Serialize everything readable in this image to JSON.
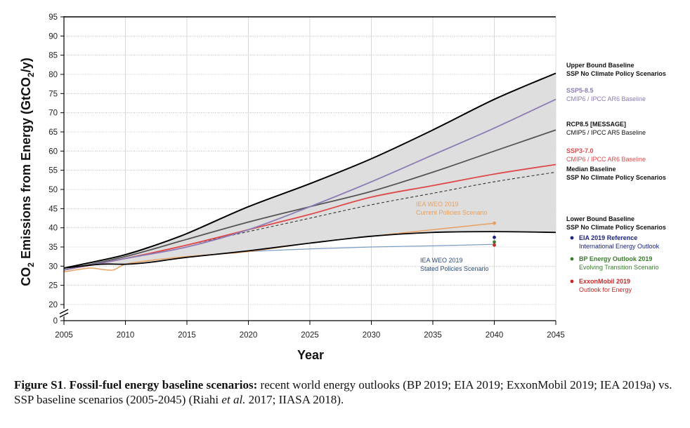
{
  "chart_data": {
    "type": "line",
    "xlabel": "Year",
    "ylabel_main": "CO",
    "ylabel_sub": "2",
    "ylabel_rest": " Emissions from Energy (GtCO",
    "ylabel_unit_sub": "2",
    "ylabel_end": "/y)",
    "xlim": [
      2005,
      2045
    ],
    "ylim": [
      20,
      95
    ],
    "x_ticks": [
      2005,
      2010,
      2015,
      2020,
      2025,
      2030,
      2035,
      2040,
      2045
    ],
    "y_ticks": [
      0,
      20,
      25,
      30,
      35,
      40,
      45,
      50,
      55,
      60,
      65,
      70,
      75,
      80,
      85,
      90,
      95
    ],
    "grid": true,
    "axis_break": true,
    "colors": {
      "upper": "#000000",
      "lower": "#000000",
      "ssp585": "#8c7bb5",
      "rcp85": "#555555",
      "ssp370": "#e04848",
      "median": "#333333",
      "iea_current": "#e8a060",
      "iea_stated": "#7a9cc4",
      "band": "#dcdcdc",
      "eia": "#1a237e",
      "bp": "#3a7d2c",
      "exxon": "#c62828"
    },
    "series": [
      {
        "key": "upper",
        "x": [
          2005,
          2008,
          2010,
          2012,
          2015,
          2020,
          2025,
          2030,
          2035,
          2040,
          2045
        ],
        "values": [
          29.5,
          31.5,
          33,
          35,
          38.5,
          45.5,
          51.5,
          58,
          65.5,
          73.5,
          80.3
        ]
      },
      {
        "key": "lower",
        "x": [
          2005,
          2008,
          2010,
          2012,
          2015,
          2020,
          2025,
          2030,
          2035,
          2040,
          2045
        ],
        "values": [
          29.5,
          30.5,
          30.5,
          31,
          32.3,
          34,
          36,
          37.8,
          38.8,
          39,
          38.8
        ]
      },
      {
        "key": "ssp585",
        "x": [
          2005,
          2010,
          2015,
          2020,
          2025,
          2030,
          2035,
          2040,
          2045
        ],
        "values": [
          29,
          32,
          35,
          39.5,
          45.5,
          52,
          59,
          66,
          73.5
        ]
      },
      {
        "key": "rcp85",
        "x": [
          2005,
          2010,
          2015,
          2020,
          2025,
          2030,
          2035,
          2040,
          2045
        ],
        "values": [
          29,
          32.5,
          37,
          41.5,
          45.5,
          49.5,
          54.5,
          60,
          65.5
        ]
      },
      {
        "key": "ssp370",
        "x": [
          2005,
          2010,
          2015,
          2020,
          2025,
          2030,
          2035,
          2040,
          2045
        ],
        "values": [
          29,
          32,
          35.5,
          39.5,
          43.5,
          48,
          51,
          54,
          56.5
        ]
      },
      {
        "key": "median",
        "x": [
          2005,
          2010,
          2015,
          2020,
          2025,
          2030,
          2035,
          2040,
          2045
        ],
        "values": [
          29,
          32,
          35.5,
          39,
          42.5,
          46,
          49,
          52,
          54.5
        ]
      },
      {
        "key": "iea_current",
        "x": [
          2005,
          2007,
          2008,
          2009,
          2010,
          2012,
          2015,
          2017,
          2020,
          2025,
          2030,
          2035,
          2040
        ],
        "values": [
          28.5,
          29.5,
          29.2,
          29,
          30.5,
          31.5,
          32.5,
          33,
          33.8,
          36,
          37.8,
          39.5,
          41.2
        ]
      },
      {
        "key": "iea_stated",
        "x": [
          2017,
          2020,
          2025,
          2030,
          2035,
          2040
        ],
        "values": [
          33,
          33.8,
          34.5,
          35,
          35.3,
          35.7
        ]
      }
    ],
    "points": [
      {
        "key": "eia",
        "x": 2040,
        "y": 37.5
      },
      {
        "key": "bp",
        "x": 2040,
        "y": 36.3
      },
      {
        "key": "exxon",
        "x": 2040,
        "y": 35.5
      }
    ],
    "annotations": {
      "iea_current_title": "IEA WEO 2019",
      "iea_current_sub": "Current Policies Scenario",
      "iea_stated_title": "IEA WEO 2019",
      "iea_stated_sub": "Stated Policies Scenario"
    },
    "legend": [
      {
        "title": "Upper Bound Baseline",
        "sub": "SSP No Climate Policy Scenarios",
        "color": "#111111",
        "subcolor": "#111111",
        "subbold": true
      },
      {
        "title": "SSP5-8.5",
        "sub": "CMIP6 / IPCC AR6 Baseline",
        "color": "#8c7bb5",
        "subcolor": "#8c7bb5",
        "subbold": false
      },
      {
        "title": "RCP8.5 [MESSAGE]",
        "sub": "CMIP5 / IPCC AR5 Baseline",
        "color": "#111111",
        "subcolor": "#111111",
        "subbold": false
      },
      {
        "title": "SSP3-7.0",
        "sub": "CMIP6 / IPCC AR6 Baseline",
        "color": "#e04848",
        "subcolor": "#e04848",
        "subbold": false
      },
      {
        "title": "Median Baseline",
        "sub": "SSP No Climate Policy Scenarios",
        "color": "#111111",
        "subcolor": "#111111",
        "subbold": true
      },
      {
        "title": "Lower Bound Baseline",
        "sub": "SSP No Climate Policy Scenarios",
        "color": "#111111",
        "subcolor": "#111111",
        "subbold": true
      },
      {
        "title": "EIA 2019 Reference",
        "sub": "International Energy Outlook",
        "color": "#1a237e",
        "subcolor": "#1a237e",
        "subbold": false,
        "dot": "#1a237e"
      },
      {
        "title": "BP Energy Outlook 2019",
        "sub": "Evolving Transition Scenario",
        "color": "#3a7d2c",
        "subcolor": "#3a7d2c",
        "subbold": false,
        "dot": "#3a7d2c"
      },
      {
        "title": "ExxonMobil 2019",
        "sub": "Outlook for Energy",
        "color": "#c62828",
        "subcolor": "#c62828",
        "subbold": false,
        "dot": "#c62828"
      }
    ]
  },
  "caption": {
    "label": "Figure S1",
    "sep": ". ",
    "title": "Fossil-fuel energy baseline scenarios:",
    "text_a": " recent world energy outlooks (BP 2019; EIA 2019; ExxonMobil 2019; IEA 2019a) vs. SSP baseline scenarios (2005-2045) (Riahi ",
    "etal": "et al.",
    "text_b": " 2017; IIASA 2018)."
  }
}
